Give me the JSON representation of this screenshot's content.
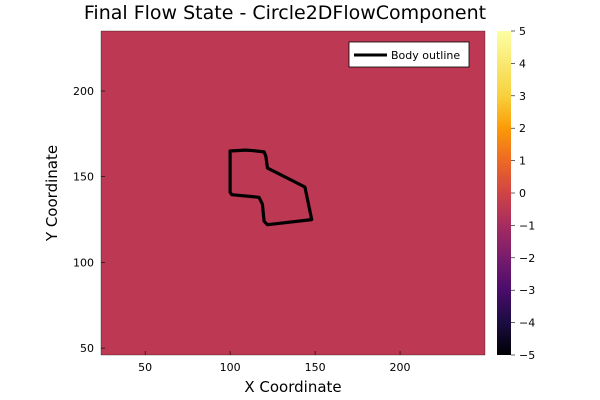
{
  "chart_data": {
    "type": "heatmap",
    "title": "Final Flow State - Circle2DFlowComponent",
    "xlabel": "X Coordinate",
    "ylabel": "Y Coordinate",
    "xlim": [
      24,
      250
    ],
    "ylim": [
      46,
      235
    ],
    "x_ticks": [
      50,
      100,
      150,
      200
    ],
    "y_ticks": [
      50,
      100,
      150,
      200
    ],
    "field_value": 0,
    "field_color": "#bd3853",
    "colorbar": {
      "range": [
        -5,
        5
      ],
      "ticks": [
        -5,
        -4,
        -3,
        -2,
        -1,
        0,
        1,
        2,
        3,
        4,
        5
      ],
      "colormap": "inferno"
    },
    "series": [
      {
        "name": "Body outline",
        "color": "#000000",
        "x": [
          100,
          109,
          114,
          120,
          121,
          122,
          144,
          148,
          122,
          120,
          119,
          117,
          101,
          100,
          100
        ],
        "y": [
          165,
          165.5,
          165.2,
          164.5,
          162,
          155,
          144,
          125,
          122,
          124,
          134,
          138,
          139.5,
          141,
          165
        ]
      }
    ],
    "legend": {
      "position": "top-right"
    }
  }
}
